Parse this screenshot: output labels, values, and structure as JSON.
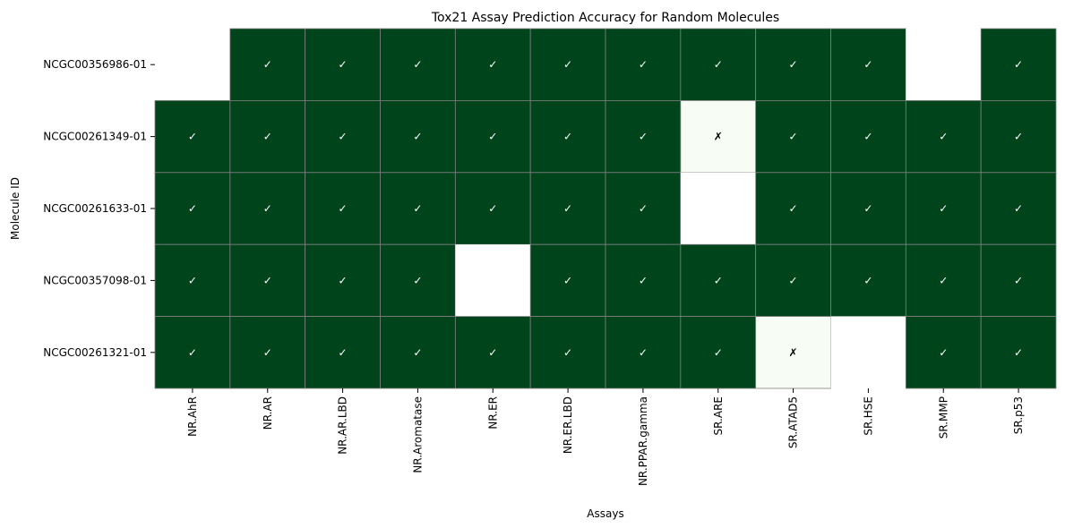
{
  "chart_data": {
    "type": "heatmap",
    "title": "Tox21 Assay Prediction Accuracy for Random Molecules",
    "xlabel": "Assays",
    "ylabel": "Molecule ID",
    "x_categories": [
      "NR.AhR",
      "NR.AR",
      "NR.AR.LBD",
      "NR.Aromatase",
      "NR.ER",
      "NR.ER.LBD",
      "NR.PPAR.gamma",
      "SR.ARE",
      "SR.ATAD5",
      "SR.HSE",
      "SR.MMP",
      "SR.p53"
    ],
    "y_categories": [
      "NCGC00356986-01",
      "NCGC00261349-01",
      "NCGC00261633-01",
      "NCGC00357098-01",
      "NCGC00261321-01"
    ],
    "values": [
      [
        null,
        1,
        1,
        1,
        1,
        1,
        1,
        1,
        1,
        1,
        null,
        1
      ],
      [
        1,
        1,
        1,
        1,
        1,
        1,
        1,
        0,
        1,
        1,
        1,
        1
      ],
      [
        1,
        1,
        1,
        1,
        1,
        1,
        1,
        null,
        1,
        1,
        1,
        1
      ],
      [
        1,
        1,
        1,
        1,
        null,
        1,
        1,
        1,
        1,
        1,
        1,
        1
      ],
      [
        1,
        1,
        1,
        1,
        1,
        1,
        1,
        1,
        0,
        null,
        1,
        1
      ]
    ],
    "correct_symbol": "✓",
    "incorrect_symbol": "✗",
    "grid": true,
    "colors": {
      "correct": "#00441b",
      "incorrect": "#f7fcf5",
      "missing": "#ffffff",
      "cell_border": "#808080",
      "correct_text": "#ffffff",
      "incorrect_text": "#000000"
    }
  }
}
